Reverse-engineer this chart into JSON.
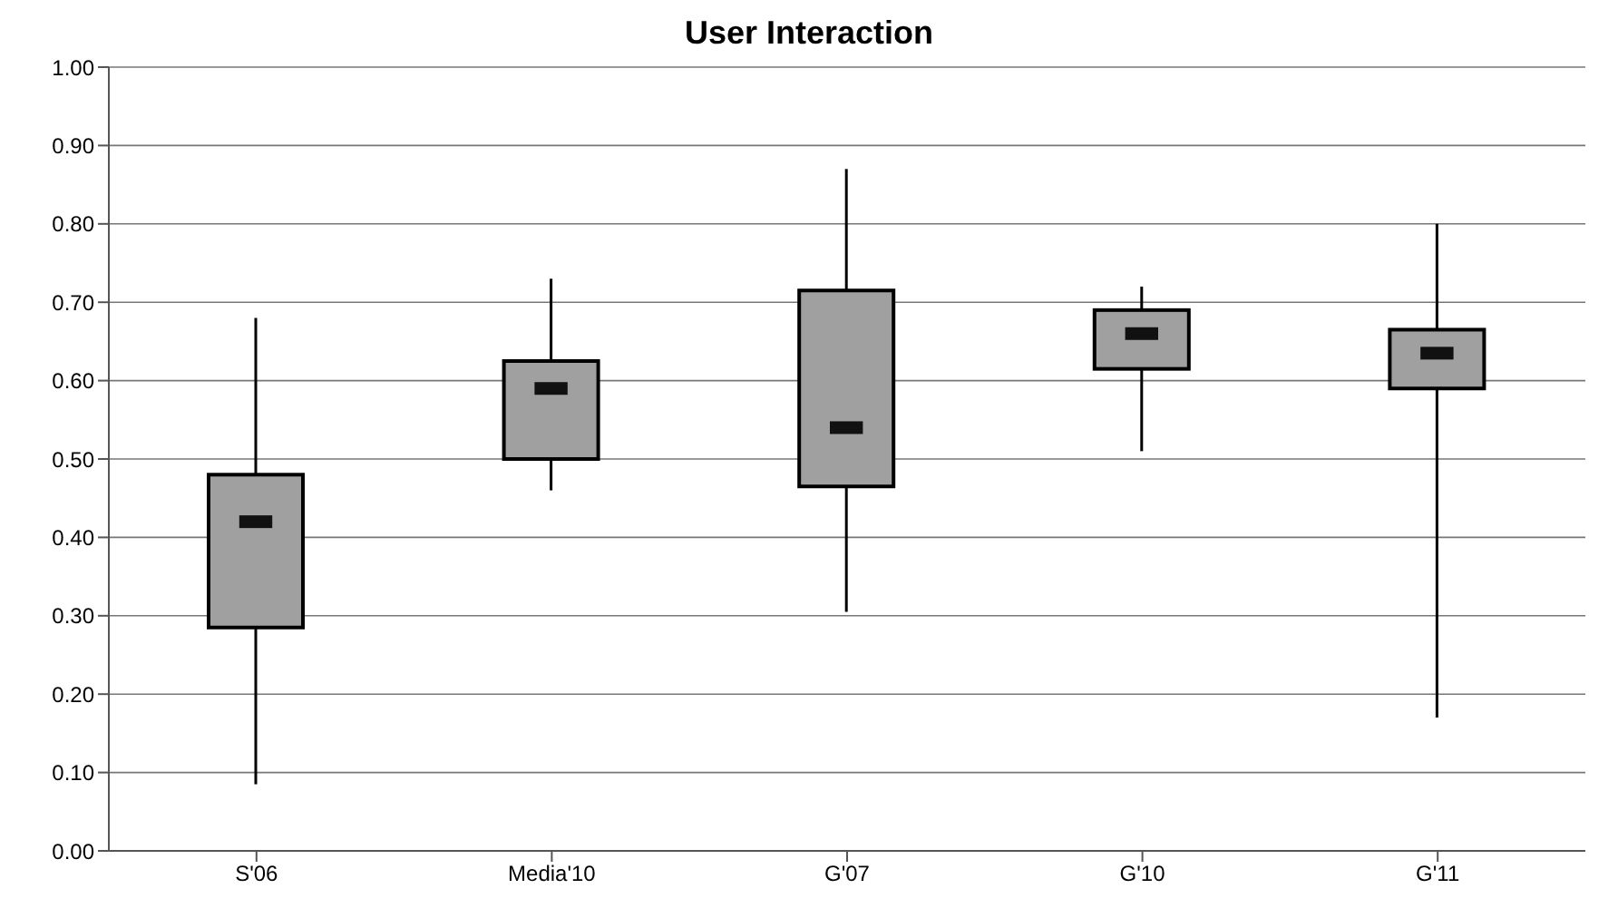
{
  "chart_data": {
    "type": "box",
    "title": "User Interaction",
    "categories": [
      "S'06",
      "Media'10",
      "G'07",
      "G'10",
      "G'11"
    ],
    "boxes": [
      {
        "low": 0.085,
        "q1": 0.285,
        "median": 0.42,
        "q3": 0.48,
        "high": 0.68
      },
      {
        "low": 0.46,
        "q1": 0.5,
        "median": 0.59,
        "q3": 0.625,
        "high": 0.73
      },
      {
        "low": 0.305,
        "q1": 0.465,
        "median": 0.54,
        "q3": 0.715,
        "high": 0.87
      },
      {
        "low": 0.51,
        "q1": 0.615,
        "median": 0.66,
        "q3": 0.69,
        "high": 0.72
      },
      {
        "low": 0.17,
        "q1": 0.59,
        "median": 0.635,
        "q3": 0.665,
        "high": 0.8
      }
    ],
    "color": "#a0a0a0",
    "ylim": [
      0,
      1
    ],
    "yticks": [
      {
        "value": 0,
        "label": "0.00"
      },
      {
        "value": 0.1,
        "label": "0.10"
      },
      {
        "value": 0.2,
        "label": "0.20"
      },
      {
        "value": 0.3,
        "label": "0.30"
      },
      {
        "value": 0.4,
        "label": "0.40"
      },
      {
        "value": 0.5,
        "label": "0.50"
      },
      {
        "value": 0.6,
        "label": "0.60"
      },
      {
        "value": 0.7,
        "label": "0.70"
      },
      {
        "value": 0.8,
        "label": "0.80"
      },
      {
        "value": 0.9,
        "label": "0.90"
      },
      {
        "value": 1,
        "label": "1.00"
      }
    ],
    "grid": "y"
  }
}
